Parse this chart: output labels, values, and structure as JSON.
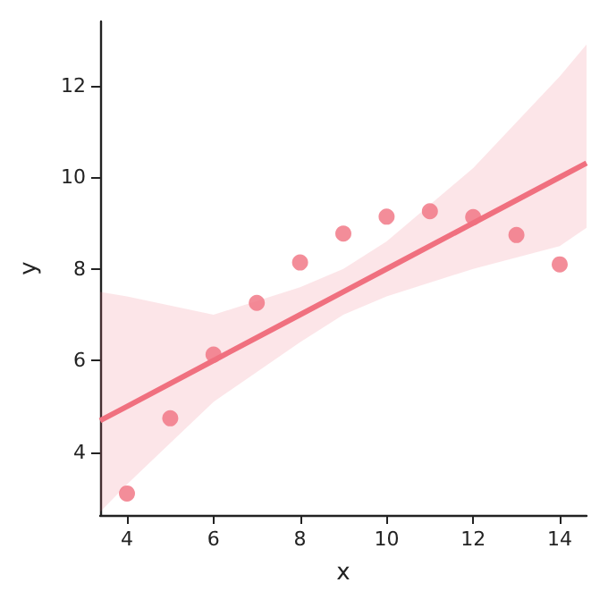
{
  "chart_data": {
    "type": "scatter",
    "xlabel": "x",
    "ylabel": "y",
    "x": [
      4,
      5,
      6,
      7,
      8,
      9,
      10,
      11,
      12,
      13,
      14
    ],
    "series": [
      {
        "color": "#f0707f",
        "marker": "circle",
        "values": [
          3.1,
          4.74,
          6.13,
          7.26,
          8.14,
          8.77,
          9.14,
          9.26,
          9.13,
          8.74,
          8.1
        ]
      },
      {
        "type": "line",
        "color": "#f0707f",
        "marker": "none",
        "line_style": "solid",
        "x": [
          3.38,
          4,
          6,
          8,
          9,
          10,
          12,
          14,
          14.62
        ],
        "values": [
          4.69,
          5,
          6,
          7,
          7.5,
          8,
          9,
          10,
          10.31
        ],
        "lower": [
          2.7,
          3.3,
          5.1,
          6.4,
          7.0,
          7.4,
          8.0,
          8.5,
          8.9
        ],
        "upper": [
          7.5,
          7.4,
          7.0,
          7.6,
          8.0,
          8.6,
          10.2,
          12.2,
          12.9
        ]
      }
    ],
    "xlim": [
      3.38,
      14.62
    ],
    "xticks": [
      4,
      6,
      8,
      10,
      12,
      14
    ],
    "ylim": [
      2.63,
      13.4
    ],
    "yticks": [
      4,
      6,
      8,
      10,
      12
    ],
    "grid": false
  }
}
